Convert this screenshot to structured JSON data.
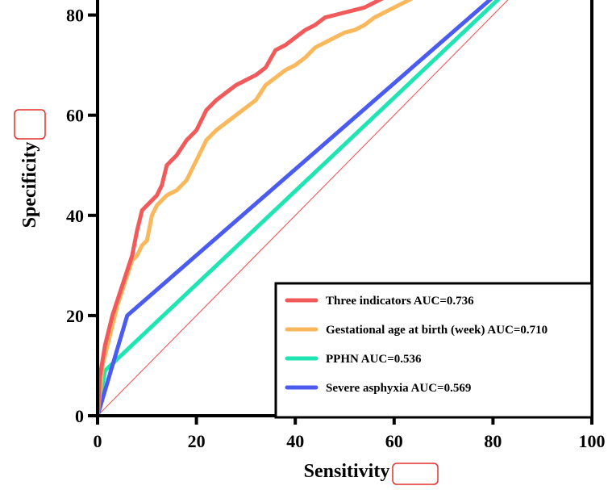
{
  "chart_data": {
    "type": "line",
    "xlabel": "Sensitivity",
    "ylabel": "Specificity",
    "xlim": [
      0,
      100
    ],
    "ylim": [
      0,
      83
    ],
    "x_ticks": [
      0,
      20,
      40,
      60,
      80,
      100
    ],
    "y_ticks": [
      0,
      20,
      40,
      60,
      80
    ],
    "grid": false,
    "legend_position": "bottom-right",
    "series": [
      {
        "name": "Three indicators AUC=0.736",
        "color": "#f15a5a",
        "points": [
          [
            0,
            0
          ],
          [
            0.5,
            8
          ],
          [
            1,
            11
          ],
          [
            1.5,
            14
          ],
          [
            2,
            16
          ],
          [
            2.5,
            18
          ],
          [
            3,
            20
          ],
          [
            4,
            23
          ],
          [
            5,
            26
          ],
          [
            6,
            29
          ],
          [
            7,
            32
          ],
          [
            8,
            37
          ],
          [
            9,
            41
          ],
          [
            10,
            42
          ],
          [
            11,
            43
          ],
          [
            12,
            44
          ],
          [
            13,
            46
          ],
          [
            14,
            50
          ],
          [
            15,
            51
          ],
          [
            16,
            52
          ],
          [
            18,
            55
          ],
          [
            20,
            57
          ],
          [
            22,
            61
          ],
          [
            24,
            63
          ],
          [
            26,
            64.5
          ],
          [
            28,
            66
          ],
          [
            30,
            67
          ],
          [
            32,
            68
          ],
          [
            34,
            69.5
          ],
          [
            36,
            73
          ],
          [
            38,
            74
          ],
          [
            40,
            75.5
          ],
          [
            42,
            77
          ],
          [
            44,
            78
          ],
          [
            46,
            79.5
          ],
          [
            48,
            80
          ],
          [
            50,
            80.5
          ],
          [
            52,
            81
          ],
          [
            54,
            81.5
          ],
          [
            56,
            82.5
          ],
          [
            58,
            83.5
          ]
        ]
      },
      {
        "name": "Gestational age at birth (week) AUC=0.710",
        "color": "#f9b85c",
        "points": [
          [
            0,
            0
          ],
          [
            1,
            10
          ],
          [
            2,
            14
          ],
          [
            3,
            18
          ],
          [
            4,
            22
          ],
          [
            5,
            25
          ],
          [
            6,
            28
          ],
          [
            7,
            31
          ],
          [
            8,
            32
          ],
          [
            9,
            34
          ],
          [
            10,
            35
          ],
          [
            11,
            40
          ],
          [
            12,
            42
          ],
          [
            14,
            44
          ],
          [
            16,
            45
          ],
          [
            18,
            47
          ],
          [
            20,
            51
          ],
          [
            22,
            55
          ],
          [
            24,
            57
          ],
          [
            26,
            58.5
          ],
          [
            28,
            60
          ],
          [
            30,
            61.5
          ],
          [
            32,
            63
          ],
          [
            34,
            66
          ],
          [
            36,
            67.5
          ],
          [
            38,
            69
          ],
          [
            40,
            70
          ],
          [
            42,
            71.5
          ],
          [
            44,
            73.5
          ],
          [
            46,
            74.5
          ],
          [
            48,
            75.5
          ],
          [
            50,
            76.5
          ],
          [
            52,
            77
          ],
          [
            54,
            78
          ],
          [
            56,
            79.5
          ],
          [
            58,
            80.5
          ],
          [
            60,
            81.5
          ],
          [
            62,
            82.5
          ],
          [
            64,
            83.5
          ]
        ]
      },
      {
        "name": "PPHN AUC=0.536",
        "color": "#1fe5b3",
        "points": [
          [
            0,
            0
          ],
          [
            1.5,
            9
          ],
          [
            82,
            84
          ]
        ]
      },
      {
        "name": "Severe asphyxia AUC=0.569",
        "color": "#4b5bf0",
        "points": [
          [
            0,
            0
          ],
          [
            6,
            20
          ],
          [
            80.5,
            84
          ]
        ]
      }
    ],
    "reference_line": {
      "color": "#f14a4a",
      "points": [
        [
          0,
          0
        ],
        [
          84,
          84
        ]
      ]
    }
  }
}
